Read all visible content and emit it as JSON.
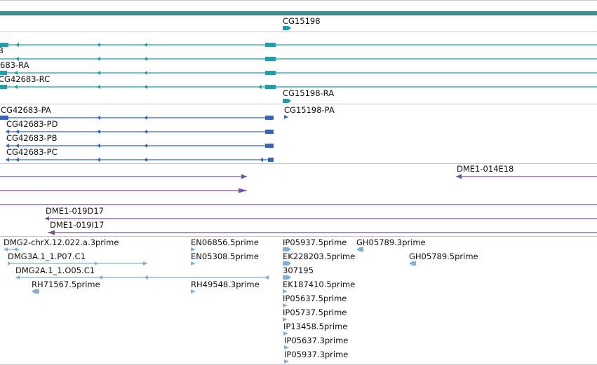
{
  "colors": {
    "top_bar": "#3a8e8e",
    "gene": "#1f9fae",
    "transcript": "#1f9fae",
    "protein": "#3366bb",
    "clone": "#7550a6",
    "est": "#7fb2d6",
    "divider": "#c8c8c8"
  },
  "gene_track": {
    "label": "CG15198"
  },
  "transcript_track": {
    "labels": [
      "B",
      "683-RA",
      "CG42683-RC",
      "CG15198-RA"
    ]
  },
  "protein_track": {
    "labels": [
      "CG42683-PA",
      "CG15198-PA",
      "CG42683-PD",
      "CG42683-PB",
      "CG42683-PC"
    ]
  },
  "clone_track": {
    "labels": [
      "DME1-014E18",
      "DME1-019D17",
      "DME1-019I17"
    ]
  },
  "est_track": {
    "labels": [
      "DMG2-chrX.12.022.a.3prime",
      "EN06856.5prime",
      "IP05937.5prime",
      "GH05789.3prime",
      "DMG3A.1_1.P07.C1",
      "EN05308.5prime",
      "EK228203.5prime",
      "GH05789.5prime",
      "DMG2A.1_1.O05.C1",
      "307195",
      "RH71567.5prime",
      "RH49548.3prime",
      "EK187410.5prime",
      "IP05637.5prime",
      "IP05737.5prime",
      "IP13458.5prime",
      "IP05637.3prime",
      "IP05937.3prime"
    ]
  }
}
